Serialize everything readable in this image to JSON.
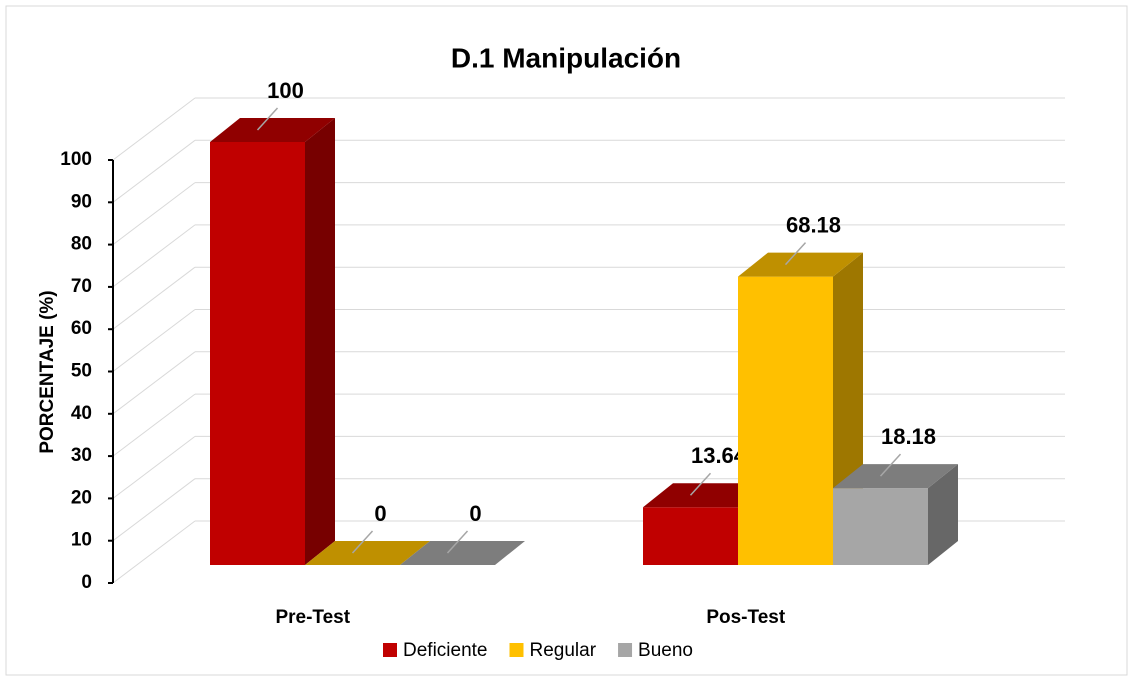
{
  "chart_data": {
    "type": "bar3d",
    "title": "D.1 Manipulación",
    "y_label": "PORCENTAJE (%)",
    "categories": [
      "Pre-Test",
      "Pos-Test"
    ],
    "series": [
      {
        "name": "Deficiente",
        "color": "#c00000",
        "values": [
          100,
          13.64
        ]
      },
      {
        "name": "Regular",
        "color": "#ffc000",
        "values": [
          0,
          68.18
        ]
      },
      {
        "name": "Bueno",
        "color": "#a6a6a6",
        "values": [
          0,
          18.18
        ]
      }
    ],
    "ylim": [
      0,
      100
    ],
    "yticks": [
      0,
      10,
      20,
      30,
      40,
      50,
      60,
      70,
      80,
      90,
      100
    ],
    "grid": true,
    "legend": "bottom"
  }
}
